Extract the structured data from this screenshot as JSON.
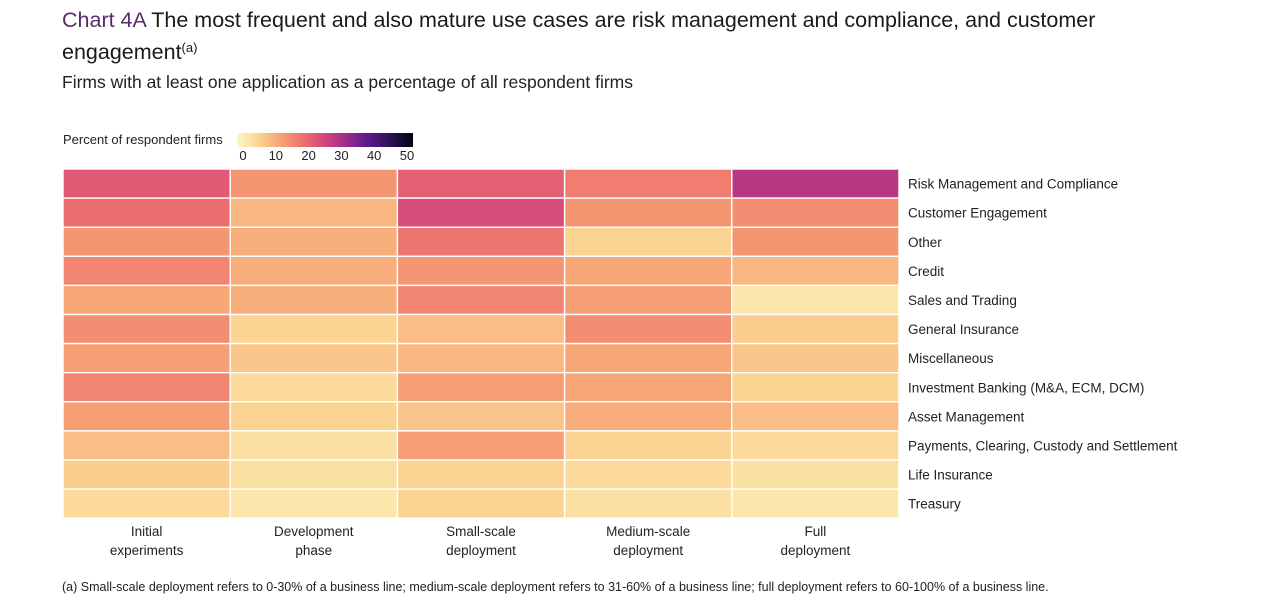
{
  "header": {
    "chart_number": "Chart 4A",
    "title": "The most frequent and also mature use cases are risk management and compliance, and customer engagement",
    "title_note": "(a)",
    "subtitle": "Firms with at least one application as a percentage of all respondent firms"
  },
  "footnote": "(a)  Small-scale deployment refers to 0-30% of a business line; medium-scale deployment refers to 31-60% of a business line; full deployment refers to 60-100% of a business line.",
  "chart_data": {
    "type": "heatmap",
    "title": "The most frequent and also mature use cases are risk management and compliance, and customer engagement",
    "subtitle": "Firms with at least one application as a percentage of all respondent firms",
    "colorbar": {
      "label": "Percent of respondent firms",
      "ticks": [
        0,
        10,
        20,
        30,
        40,
        50
      ],
      "range": [
        0,
        50
      ],
      "colors": [
        "#fcf8c4",
        "#fbd392",
        "#f7a274",
        "#ed6f6e",
        "#d4457b",
        "#9a2b8c",
        "#5a1a8b",
        "#2a1250",
        "#05030f"
      ]
    },
    "columns": [
      [
        "Initial",
        "experiments"
      ],
      [
        "Development",
        "phase"
      ],
      [
        "Small-scale",
        "deployment"
      ],
      [
        "Medium-scale",
        "deployment"
      ],
      [
        "Full",
        "deployment"
      ]
    ],
    "rows": [
      "Risk Management and Compliance",
      "Customer Engagement",
      "Other",
      "Credit",
      "Sales and Trading",
      "General Insurance",
      "Miscellaneous",
      "Investment Banking (M&A, ECM, DCM)",
      "Asset Management",
      "Payments, Clearing, Custody and Settlement",
      "Life Insurance",
      "Treasury"
    ],
    "values": [
      [
        22,
        14,
        21,
        17,
        28
      ],
      [
        19,
        10,
        24,
        14,
        15
      ],
      [
        14,
        11,
        18,
        6,
        14
      ],
      [
        16,
        11,
        14,
        12,
        10
      ],
      [
        12,
        11,
        16,
        13,
        3
      ],
      [
        15,
        6,
        9,
        15,
        7
      ],
      [
        13,
        8,
        10,
        12,
        8
      ],
      [
        16,
        5,
        13,
        12,
        6
      ],
      [
        13,
        6,
        8,
        11,
        9
      ],
      [
        9,
        4,
        13,
        6,
        5
      ],
      [
        7,
        4,
        6,
        5,
        4
      ],
      [
        5,
        3,
        6,
        4,
        3
      ]
    ]
  }
}
